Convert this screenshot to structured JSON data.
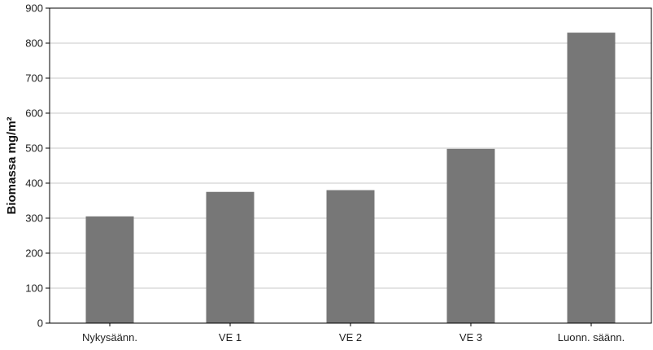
{
  "chart_data": {
    "type": "bar",
    "title": "",
    "xlabel": "",
    "ylabel": "Biomassa mg/m²",
    "categories": [
      "Nykysäänn.",
      "VE 1",
      "VE 2",
      "VE 3",
      "Luonn. säänn."
    ],
    "values": [
      305,
      375,
      380,
      498,
      830
    ],
    "ylim": [
      0,
      900
    ],
    "yticks": [
      0,
      100,
      200,
      300,
      400,
      500,
      600,
      700,
      800,
      900
    ],
    "grid": true,
    "bar_color": "#777777",
    "grid_color": "#c8c8c8"
  }
}
